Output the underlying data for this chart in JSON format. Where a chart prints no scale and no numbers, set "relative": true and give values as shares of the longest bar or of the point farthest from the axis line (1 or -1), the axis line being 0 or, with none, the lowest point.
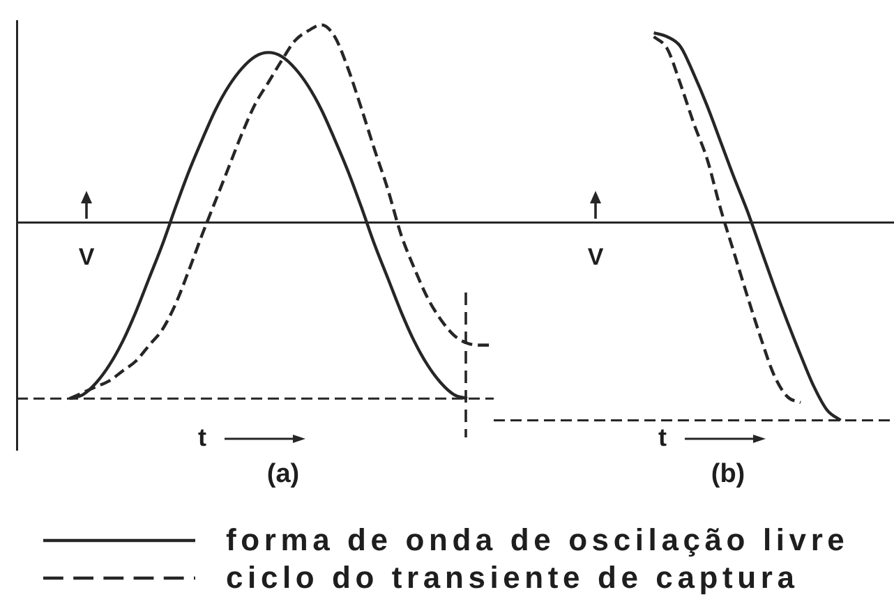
{
  "chart_data": [
    {
      "type": "line",
      "title": "(a)",
      "xlabel": "t",
      "ylabel": "V",
      "relative": true,
      "tick_labels": false,
      "legend": "bottom",
      "categories": [
        null,
        null,
        null,
        null,
        null,
        null,
        null,
        null,
        null,
        null,
        null,
        null,
        null,
        null,
        null,
        null,
        null,
        null,
        null,
        null,
        null,
        null,
        null,
        null,
        null,
        null,
        null,
        null,
        null,
        null,
        null,
        null,
        null,
        null,
        null,
        null,
        null
      ],
      "series": [
        {
          "name": "forma de onda de oscilação livre",
          "color": "#262626",
          "line_style": "solid",
          "values": [
            null,
            null,
            null,
            null,
            -0.89,
            -0.87,
            -0.81,
            -0.72,
            -0.6,
            -0.45,
            -0.28,
            -0.11,
            0.08,
            0.26,
            0.42,
            0.57,
            0.69,
            0.78,
            0.84,
            0.86,
            0.84,
            0.78,
            0.69,
            0.57,
            0.42,
            0.26,
            0.08,
            -0.11,
            -0.28,
            -0.45,
            -0.6,
            -0.72,
            -0.81,
            -0.87,
            -0.89,
            null,
            null
          ]
        },
        {
          "name": "ciclo do transiente de captura",
          "color": "#262626",
          "line_style": "dashed",
          "values": [
            null,
            null,
            null,
            null,
            -0.89,
            -0.86,
            -0.83,
            -0.8,
            -0.75,
            -0.7,
            -0.62,
            -0.54,
            -0.41,
            -0.24,
            -0.06,
            0.11,
            0.28,
            0.45,
            0.6,
            0.71,
            0.82,
            0.92,
            0.97,
            1,
            0.94,
            0.78,
            0.58,
            0.37,
            0.17,
            -0.06,
            -0.23,
            -0.38,
            -0.49,
            -0.57,
            -0.61,
            -0.62,
            -0.62
          ]
        }
      ],
      "ref_lines": [
        {
          "axis": "y",
          "value": -0.89,
          "line_style": "dashed",
          "color": "#262626"
        }
      ]
    },
    {
      "type": "line",
      "title": "(b)",
      "xlabel": "t",
      "ylabel": "V",
      "relative": true,
      "tick_labels": false,
      "categories": [
        null,
        null,
        null,
        null,
        null,
        null,
        null,
        null,
        null,
        null,
        null,
        null,
        null,
        null,
        null,
        null,
        null,
        null,
        null,
        null,
        null,
        null,
        null,
        null,
        null,
        null,
        null,
        null,
        null,
        null,
        null
      ],
      "series": [
        {
          "color": "#262626",
          "line_style": "solid",
          "values": [
            null,
            null,
            null,
            null,
            null,
            null,
            null,
            null,
            null,
            null,
            null,
            null,
            0.96,
            0.94,
            0.89,
            0.75,
            0.59,
            0.41,
            0.23,
            0.06,
            -0.13,
            -0.32,
            -0.5,
            -0.67,
            -0.83,
            -0.95,
            -1,
            null,
            null,
            null,
            null
          ]
        },
        {
          "color": "#262626",
          "line_style": "dashed",
          "values": [
            null,
            null,
            null,
            null,
            null,
            null,
            null,
            null,
            null,
            null,
            null,
            null,
            0.94,
            0.88,
            0.7,
            0.5,
            0.32,
            0.07,
            -0.15,
            -0.37,
            -0.58,
            -0.77,
            -0.88,
            -0.91,
            null,
            null,
            null,
            null,
            null,
            null,
            null
          ]
        }
      ],
      "ref_lines": [
        {
          "axis": "y",
          "value": -1,
          "line_style": "dashed",
          "color": "#262626"
        }
      ]
    }
  ]
}
